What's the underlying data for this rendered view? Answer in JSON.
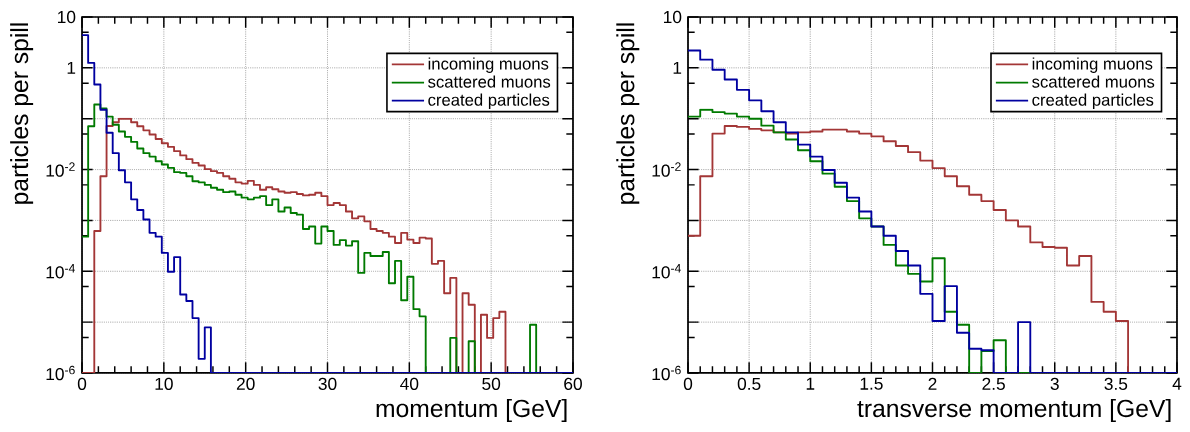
{
  "chart_data": [
    {
      "type": "histogram",
      "xlabel": "momentum [GeV]",
      "ylabel": "particles per spill",
      "log": "y",
      "grid": true,
      "legend": "top right",
      "xlim": [
        0,
        60
      ],
      "xticks": [
        0,
        10,
        20,
        30,
        40,
        50,
        60
      ],
      "ylim": [
        1e-06,
        10
      ],
      "yticks": [
        {
          "value": 10,
          "label": "10"
        },
        {
          "value": 5,
          "label": null
        },
        {
          "value": 1,
          "label": "1"
        },
        {
          "value": 0.5,
          "label": null
        },
        {
          "value": 0.1,
          "label": null
        },
        {
          "value": 0.05,
          "label": null
        },
        {
          "value": 0.01,
          "label": "10$^{-2}$"
        },
        {
          "value": 0.005,
          "label": null
        },
        {
          "value": 0.001,
          "label": null
        },
        {
          "value": 0.0005,
          "label": null
        },
        {
          "value": 0.0001,
          "label": "10$^{-4}$"
        },
        {
          "value": 5e-05,
          "label": null
        },
        {
          "value": 1e-05,
          "label": null
        },
        {
          "value": 5e-06,
          "label": null
        },
        {
          "value": 1e-06,
          "label": "10$^{-6}$"
        }
      ],
      "bins": [
        0,
        0.75,
        1.5,
        2.25,
        3,
        3.75,
        4.5,
        5.25,
        6,
        6.75,
        7.5,
        8.25,
        9,
        9.75,
        10.5,
        11.25,
        12,
        12.75,
        13.5,
        14.25,
        15,
        15.75,
        16.5,
        17.25,
        18,
        18.75,
        19.5,
        20.25,
        21,
        21.75,
        22.5,
        23.25,
        24,
        24.75,
        25.5,
        26.25,
        27,
        27.75,
        28.5,
        29.25,
        30,
        30.75,
        31.5,
        32.25,
        33,
        33.75,
        34.5,
        35.25,
        36,
        36.75,
        37.5,
        38.25,
        39,
        39.75,
        40.5,
        41.25,
        42,
        42.75,
        43.5,
        44.25,
        45,
        45.75,
        46.5,
        47.25,
        48,
        48.75,
        49.5,
        50.25,
        51,
        51.75,
        52.5,
        53.25,
        54,
        54.75,
        55.5,
        56.25,
        57,
        57.75,
        58.5,
        59.25,
        60
      ],
      "series": [
        {
          "name": "incoming muons",
          "color": "#a33636",
          "values": [
            null,
            null,
            0.00062,
            0.0074,
            0.072,
            0.085,
            0.1,
            0.1,
            0.085,
            0.071,
            0.059,
            0.049,
            0.04,
            0.033,
            0.028,
            0.023,
            0.019,
            0.016,
            0.0135,
            0.012,
            0.0102,
            0.0093,
            0.0086,
            0.0074,
            0.0066,
            0.0056,
            0.0053,
            0.006,
            0.005,
            0.004,
            0.0045,
            0.0041,
            0.0037,
            0.0035,
            0.0036,
            0.0033,
            0.0031,
            0.0032,
            0.0035,
            0.003,
            0.002,
            0.0022,
            0.002,
            0.0015,
            0.0011,
            0.0012,
            0.00096,
            0.00068,
            0.00062,
            0.00057,
            0.00048,
            0.00036,
            0.00057,
            0.00042,
            0.00036,
            0.00046,
            0.00044,
            0.00014,
            0.00016,
            3.7e-05,
            7.4e-05,
            null,
            3.7e-05,
            2.2e-05,
            null,
            1.4e-05,
            4.9e-06,
            1.2e-05,
            1.6e-05,
            null,
            null,
            null,
            null,
            null,
            null,
            null,
            null,
            null,
            null,
            null
          ]
        },
        {
          "name": "scattered muons",
          "color": "#007a00",
          "values": [
            0.00048,
            0.071,
            0.19,
            0.16,
            0.11,
            0.076,
            0.056,
            0.044,
            0.035,
            0.026,
            0.021,
            0.018,
            0.0146,
            0.0126,
            0.0108,
            0.0089,
            0.0086,
            0.0074,
            0.0059,
            0.0056,
            0.005,
            0.0044,
            0.004,
            0.0036,
            0.0037,
            0.0032,
            0.0028,
            0.0026,
            0.0028,
            0.003,
            0.002,
            0.0026,
            0.0015,
            0.0018,
            0.0014,
            0.0013,
            0.00068,
            0.00076,
            0.00035,
            0.00076,
            0.00062,
            0.00033,
            0.00041,
            0.00032,
            0.00039,
            9.3e-05,
            0.00023,
            0.0002,
            0.0002,
            0.00024,
            5.8e-05,
            0.00016,
            2.7e-05,
            7.8e-05,
            1.8e-05,
            1.3e-05,
            null,
            null,
            null,
            null,
            4.9e-06,
            null,
            null,
            4.2e-06,
            null,
            null,
            null,
            null,
            null,
            null,
            null,
            null,
            null,
            8.9e-06,
            null,
            null,
            null,
            null,
            null,
            null
          ]
        },
        {
          "name": "created particles",
          "color": "#0000a0",
          "values": [
            4.4,
            1.25,
            0.47,
            0.15,
            0.053,
            0.021,
            0.0097,
            0.0056,
            0.0026,
            0.0016,
            0.00104,
            0.00057,
            0.00048,
            0.00023,
            9.8e-05,
            0.00019,
            3.5e-05,
            2.6e-05,
            1.2e-05,
            1.9e-06,
            7.9e-06,
            null,
            null,
            null,
            null,
            null,
            null,
            null,
            null,
            null,
            null,
            null,
            null,
            null,
            null,
            null,
            null,
            null,
            null,
            null,
            null,
            null,
            null,
            null,
            null,
            null,
            null,
            null,
            null,
            null,
            null,
            null,
            null,
            null,
            null,
            null,
            null,
            null,
            null,
            null,
            null,
            null,
            null,
            null,
            null,
            null,
            null,
            null,
            null,
            null,
            null,
            null,
            null,
            null,
            null,
            null,
            null,
            null,
            null,
            null
          ]
        }
      ]
    },
    {
      "type": "histogram",
      "xlabel": "transverse momentum [GeV]",
      "ylabel": "particles per spill",
      "log": "y",
      "grid": true,
      "legend": "top right",
      "xlim": [
        0,
        4
      ],
      "xticks": [
        0,
        0.5,
        1,
        1.5,
        2,
        2.5,
        3,
        3.5,
        4
      ],
      "ylim": [
        1e-06,
        10
      ],
      "yticks": [
        {
          "value": 10,
          "label": "10"
        },
        {
          "value": 5,
          "label": null
        },
        {
          "value": 1,
          "label": "1"
        },
        {
          "value": 0.5,
          "label": null
        },
        {
          "value": 0.1,
          "label": null
        },
        {
          "value": 0.05,
          "label": null
        },
        {
          "value": 0.01,
          "label": "10$^{-2}$"
        },
        {
          "value": 0.005,
          "label": null
        },
        {
          "value": 0.001,
          "label": null
        },
        {
          "value": 0.0005,
          "label": null
        },
        {
          "value": 0.0001,
          "label": "10$^{-4}$"
        },
        {
          "value": 5e-05,
          "label": null
        },
        {
          "value": 1e-05,
          "label": null
        },
        {
          "value": 5e-06,
          "label": null
        },
        {
          "value": 1e-06,
          "label": "10$^{-6}$"
        }
      ],
      "bins": [
        0,
        0.1,
        0.2,
        0.3,
        0.4,
        0.5,
        0.6,
        0.7,
        0.8,
        0.9,
        1,
        1.1,
        1.2,
        1.3,
        1.4,
        1.5,
        1.6,
        1.7,
        1.8,
        1.9,
        2,
        2.1,
        2.2,
        2.3,
        2.4,
        2.5,
        2.6,
        2.7,
        2.8,
        2.9,
        3,
        3.1,
        3.2,
        3.3,
        3.4,
        3.5,
        3.6,
        3.7,
        3.8,
        3.9,
        4
      ],
      "series": [
        {
          "name": "incoming muons",
          "color": "#a33636",
          "values": [
            0.0005,
            0.0074,
            0.051,
            0.072,
            0.069,
            0.063,
            0.059,
            0.054,
            0.051,
            0.054,
            0.056,
            0.061,
            0.061,
            0.056,
            0.051,
            0.045,
            0.036,
            0.029,
            0.022,
            0.015,
            0.0107,
            0.0074,
            0.0047,
            0.0032,
            0.0024,
            0.0016,
            0.001,
            0.00076,
            0.00037,
            0.0003,
            0.00029,
            0.00013,
            0.0002,
            2.5e-05,
            1.6e-05,
            1.05e-05,
            null,
            null,
            null,
            null
          ]
        },
        {
          "name": "scattered muons",
          "color": "#007a00",
          "values": [
            0.11,
            0.15,
            0.135,
            0.126,
            0.11,
            0.1,
            0.073,
            0.054,
            0.039,
            0.024,
            0.0146,
            0.0083,
            0.0046,
            0.0024,
            0.0011,
            0.00076,
            0.00033,
            0.00013,
            8.9e-05,
            6.3e-05,
            0.00018,
            1.6e-05,
            8.9e-06,
            null,
            2.7e-06,
            4.4e-06,
            null,
            null,
            null,
            null,
            null,
            null,
            null,
            null,
            null,
            null,
            null,
            null,
            null,
            null
          ]
        },
        {
          "name": "created particles",
          "color": "#0000a0",
          "values": [
            2.2,
            1.45,
            0.92,
            0.59,
            0.37,
            0.23,
            0.14,
            0.085,
            0.054,
            0.031,
            0.018,
            0.0098,
            0.0055,
            0.0028,
            0.0015,
            0.00076,
            0.0005,
            0.00025,
            0.00013,
            3.6e-05,
            1.05e-05,
            5.1e-05,
            6.2e-06,
            3e-06,
            2.8e-06,
            null,
            null,
            1e-05,
            null,
            null,
            null,
            null,
            null,
            null,
            null,
            null,
            null,
            null,
            null,
            null
          ]
        }
      ]
    }
  ]
}
